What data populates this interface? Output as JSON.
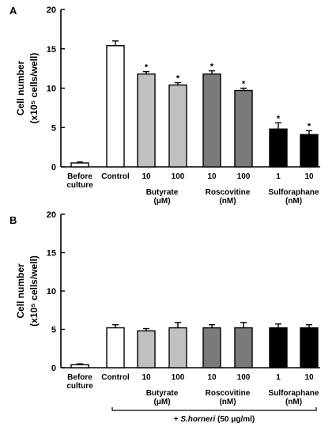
{
  "chart_data": [
    {
      "type": "bar",
      "panel_label": "A",
      "ylabel_line1": "Cell number",
      "ylabel_line2": "(x10⁵ cells/well)",
      "ylim": [
        0,
        20
      ],
      "yticks": [
        0,
        5,
        10,
        15,
        20
      ],
      "categories": [
        "Before culture",
        "Control",
        "Butyrate 10",
        "Butyrate 100",
        "Roscovitine 10",
        "Roscovitine 100",
        "Sulforaphane 1",
        "Sulforaphane 10"
      ],
      "values": [
        0.5,
        15.4,
        11.8,
        10.4,
        11.8,
        9.7,
        4.8,
        4.1
      ],
      "errors": [
        0.1,
        0.6,
        0.3,
        0.3,
        0.4,
        0.3,
        0.8,
        0.5
      ],
      "significant": [
        false,
        false,
        true,
        true,
        true,
        true,
        true,
        true
      ],
      "bar_colors": [
        "#ffffff",
        "#ffffff",
        "#c0c0c0",
        "#c0c0c0",
        "#7a7a7a",
        "#7a7a7a",
        "#000000",
        "#000000"
      ],
      "group_labels": {
        "before": [
          "Before",
          "culture"
        ],
        "control": "Control",
        "doses": [
          "10",
          "100",
          "10",
          "100",
          "1",
          "10"
        ],
        "drugs": [
          {
            "name": "Butyrate",
            "unit": "(μM)"
          },
          {
            "name": "Roscovitine",
            "unit": "(nM)"
          },
          {
            "name": "Sulforaphane",
            "unit": "(nM)"
          }
        ]
      },
      "significance_marker": "*"
    },
    {
      "type": "bar",
      "panel_label": "B",
      "ylabel_line1": "Cell number",
      "ylabel_line2": "(x10⁵ cells/well)",
      "ylim": [
        0,
        20
      ],
      "yticks": [
        0,
        5,
        10,
        15,
        20
      ],
      "categories": [
        "Before culture",
        "Control",
        "Butyrate 10",
        "Butyrate 100",
        "Roscovitine 10",
        "Roscovitine 100",
        "Sulforaphane 1",
        "Sulforaphane 10"
      ],
      "values": [
        0.4,
        5.2,
        4.8,
        5.2,
        5.2,
        5.2,
        5.2,
        5.2
      ],
      "errors": [
        0.1,
        0.4,
        0.3,
        0.7,
        0.4,
        0.7,
        0.5,
        0.4
      ],
      "significant": [
        false,
        false,
        false,
        false,
        false,
        false,
        false,
        false
      ],
      "bar_colors": [
        "#ffffff",
        "#ffffff",
        "#c0c0c0",
        "#c0c0c0",
        "#7a7a7a",
        "#7a7a7a",
        "#000000",
        "#000000"
      ],
      "group_labels": {
        "before": [
          "Before",
          "culture"
        ],
        "control": "Control",
        "doses": [
          "10",
          "100",
          "10",
          "100",
          "1",
          "10"
        ],
        "drugs": [
          {
            "name": "Butyrate",
            "unit": "(μM)"
          },
          {
            "name": "Roscovitine",
            "unit": "(nM)"
          },
          {
            "name": "Sulforaphane",
            "unit": "(nM)"
          }
        ]
      },
      "treatment_prefix": "+ ",
      "treatment_name": "S.horneri",
      "treatment_dose": " (50 μg/ml)"
    }
  ]
}
